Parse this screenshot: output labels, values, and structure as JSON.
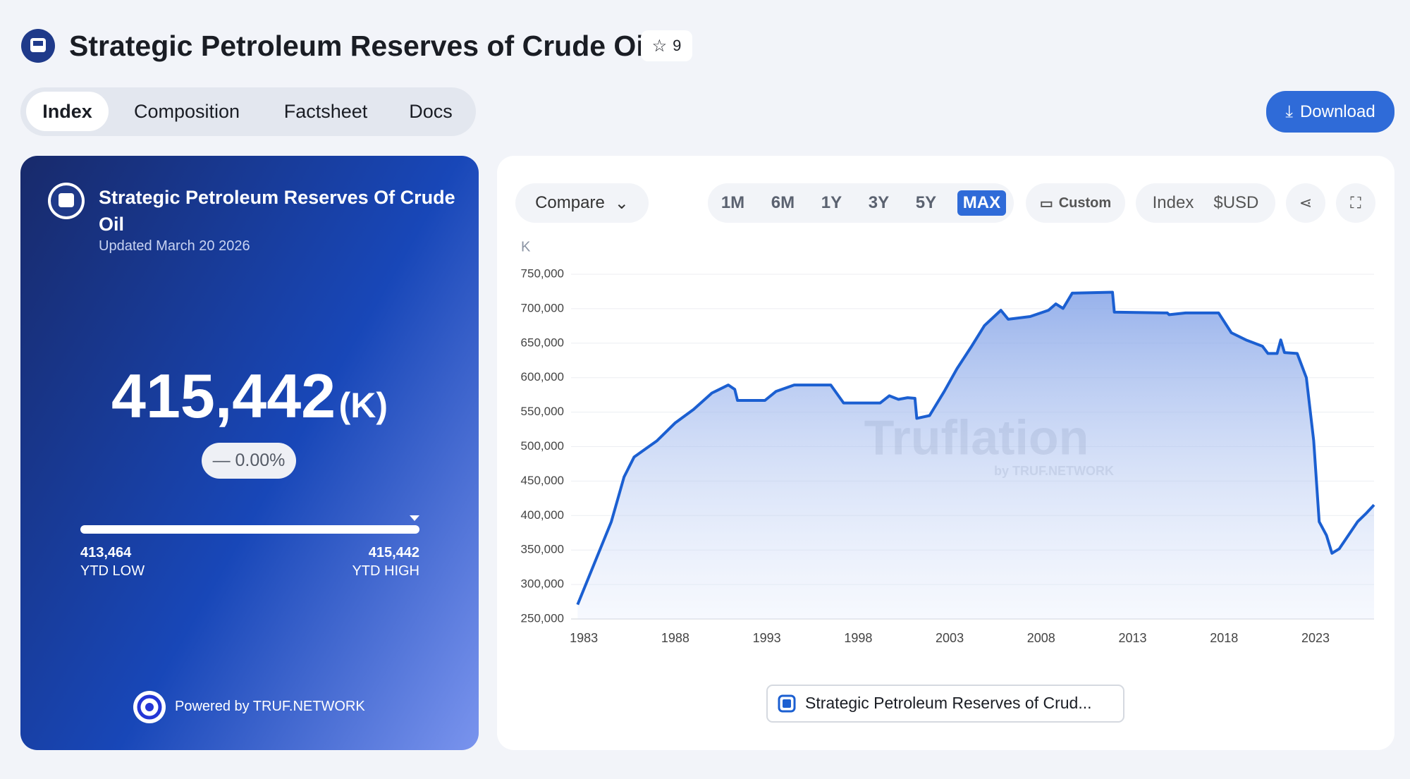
{
  "header": {
    "title": "Strategic Petroleum Reserves of Crude Oil",
    "stars": "9"
  },
  "tabs": [
    "Index",
    "Composition",
    "Factsheet",
    "Docs"
  ],
  "download": "Download",
  "card": {
    "title": "Strategic Petroleum Reserves Of Crude Oil",
    "updated": "Updated March 20 2026",
    "value": "415,442",
    "unit": "(K)",
    "change": "— 0.00%",
    "ytd_low": "413,464",
    "ytd_low_label": "YTD LOW",
    "ytd_high": "415,442",
    "ytd_high_label": "YTD HIGH",
    "powered": "Powered by TRUF.NETWORK"
  },
  "toolbar": {
    "compare": "Compare",
    "ranges": [
      "1M",
      "6M",
      "1Y",
      "3Y",
      "5Y",
      "MAX"
    ],
    "active_range": "MAX",
    "custom": "Custom",
    "index": "Index",
    "currency": "$USD"
  },
  "chart_data": {
    "type": "line",
    "y_unit": "K",
    "watermark": "Truflation",
    "watermark_sub": "by TRUF.NETWORK",
    "xlim": [
      1982.3,
      2026.2
    ],
    "xticks": [
      1983,
      1988,
      1993,
      1998,
      2003,
      2008,
      2013,
      2018,
      2023
    ],
    "ylim": [
      250000,
      750000
    ],
    "yticks": [
      {
        "value": 250000,
        "label": "250,000"
      },
      {
        "value": 300000,
        "label": "300,000"
      },
      {
        "value": 350000,
        "label": "350,000"
      },
      {
        "value": 400000,
        "label": "400,000"
      },
      {
        "value": 450000,
        "label": "450,000"
      },
      {
        "value": 500000,
        "label": "500,000"
      },
      {
        "value": 550000,
        "label": "550,000"
      },
      {
        "value": 600000,
        "label": "600,000"
      },
      {
        "value": 650000,
        "label": "650,000"
      },
      {
        "value": 700000,
        "label": "700,000"
      },
      {
        "value": 750000,
        "label": "750,000"
      }
    ],
    "grid": true,
    "series": [
      {
        "name": "Strategic Petroleum Reserves of Crud...",
        "color": "#1b5fd1",
        "x": [
          1982.66,
          1983.5,
          1984.5,
          1985.2,
          1985.75,
          1987,
          1988,
          1989,
          1990,
          1990.9,
          1991.25,
          1991.4,
          1992.9,
          1993.5,
          1994.5,
          1996.5,
          1997.2,
          1999.2,
          1999.7,
          2000.2,
          2000.7,
          2001.1,
          2001.2,
          2001.9,
          2002.7,
          2003.4,
          2004.2,
          2004.9,
          2005.8,
          2006.2,
          2007.4,
          2008.4,
          2008.8,
          2009.2,
          2009.7,
          2011.9,
          2012,
          2014.9,
          2015,
          2015.9,
          2017.7,
          2018.4,
          2019.2,
          2020.1,
          2020.4,
          2020.9,
          2021.1,
          2021.3,
          2022,
          2022.5,
          2022.9,
          2023.2,
          2023.6,
          2023.9,
          2024.3,
          2025.3,
          2025.8,
          2026.2
        ],
        "values": [
          270900,
          325700,
          391000,
          456000,
          485000,
          508500,
          534600,
          554000,
          577700,
          589400,
          583000,
          567000,
          567000,
          580000,
          589400,
          589400,
          563300,
          563300,
          573700,
          568500,
          571000,
          570000,
          541000,
          545000,
          580000,
          613000,
          645600,
          675600,
          697800,
          684700,
          688600,
          697800,
          707000,
          700400,
          722600,
          723900,
          695100,
          693900,
          691300,
          693900,
          693900,
          665100,
          654700,
          645600,
          635100,
          635100,
          654700,
          636400,
          635100,
          599900,
          508500,
          391000,
          371400,
          345300,
          351800,
          391000,
          404000,
          415442
        ]
      }
    ]
  }
}
